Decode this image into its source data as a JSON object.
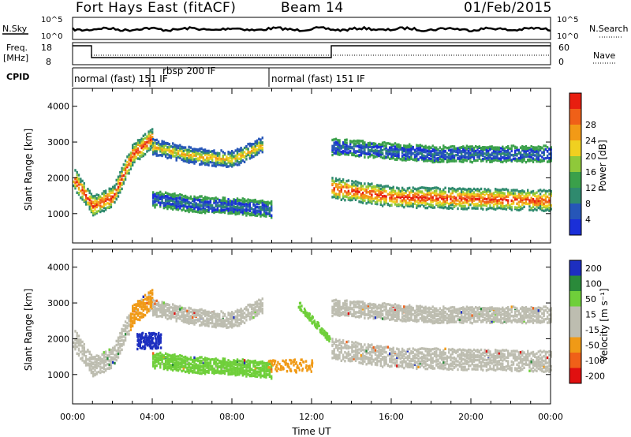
{
  "header": {
    "station": "Fort Hays East (fitACF)",
    "beam": "Beam 14",
    "date": "01/Feb/2015"
  },
  "top_panels": {
    "nsky_label": "N.Sky",
    "nsky_ticks": [
      "10^5",
      "10^0"
    ],
    "nsearch_label": "N.Search",
    "nsearch_ticks": [
      "10^5",
      "10^0"
    ],
    "freq_label": "Freq.",
    "freq_unit": "[MHz]",
    "freq_ticks": [
      "18",
      "8"
    ],
    "nave_label": "Nave",
    "nave_ticks": [
      "60",
      "0"
    ],
    "cpid_label": "CPID",
    "cpid_segments": [
      {
        "label": "normal (fast) 151 IF",
        "start_h": 0,
        "end_h": 4
      },
      {
        "label": "rbsp 200 IF",
        "start_h": 4,
        "end_h": 10
      },
      {
        "label": "normal (fast) 151 IF",
        "start_h": 10,
        "end_h": 24
      }
    ]
  },
  "chart_data": [
    {
      "type": "heatmap",
      "name": "power",
      "ylabel": "Slant Range [km]",
      "ylim": [
        180,
        4500
      ],
      "yticks": [
        "1000",
        "2000",
        "3000",
        "4000"
      ],
      "colorbar_label": "Power [dB]",
      "colorbar_ticks": [
        "4",
        "8",
        "12",
        "16",
        "20",
        "24",
        "28"
      ],
      "bands": [
        {
          "x": [
            0.0,
            1.0,
            2.0,
            3.0,
            4.0
          ],
          "y": [
            2050,
            1250,
            1500,
            2700,
            3150
          ],
          "level": "strong"
        },
        {
          "x": [
            4.0,
            6.0,
            8.0,
            9.5
          ],
          "y": [
            2900,
            2650,
            2550,
            2950
          ],
          "level": "medium"
        },
        {
          "x": [
            13.0,
            16.0,
            20.0,
            24.0
          ],
          "y": [
            1750,
            1500,
            1450,
            1400
          ],
          "level": "strong"
        },
        {
          "x": [
            13.0,
            18.0,
            24.0
          ],
          "y": [
            2900,
            2700,
            2700
          ],
          "level": "weak"
        },
        {
          "x": [
            4.0,
            6.0,
            8.0,
            10.0
          ],
          "y": [
            1450,
            1300,
            1250,
            1150
          ],
          "level": "weak"
        }
      ]
    },
    {
      "type": "heatmap",
      "name": "velocity",
      "xlabel": "Time UT",
      "ylabel": "Slant Range [km]",
      "ylim": [
        180,
        4500
      ],
      "yticks": [
        "1000",
        "2000",
        "3000",
        "4000"
      ],
      "xticks": [
        "00:00",
        "04:00",
        "08:00",
        "12:00",
        "16:00",
        "20:00",
        "00:00"
      ],
      "xlim": [
        0,
        24
      ],
      "colorbar_label": "Velocity [m s⁻¹]",
      "colorbar_ticks": [
        "200",
        "100",
        "50",
        "15",
        "-15",
        "-50",
        "-100",
        "-200"
      ]
    }
  ],
  "colors": {
    "power_scale": [
      "#1a2fd8",
      "#2656b8",
      "#2f8a6e",
      "#3aa04a",
      "#8fc93a",
      "#f0d020",
      "#f29a16",
      "#f06018",
      "#e81e10"
    ],
    "velocity_scale": [
      "#1d2fc0",
      "#2a8a3a",
      "#6fcf3a",
      "#bdbdb0",
      "#bdbdb0",
      "#f09a16",
      "#f06018",
      "#e01010"
    ]
  }
}
